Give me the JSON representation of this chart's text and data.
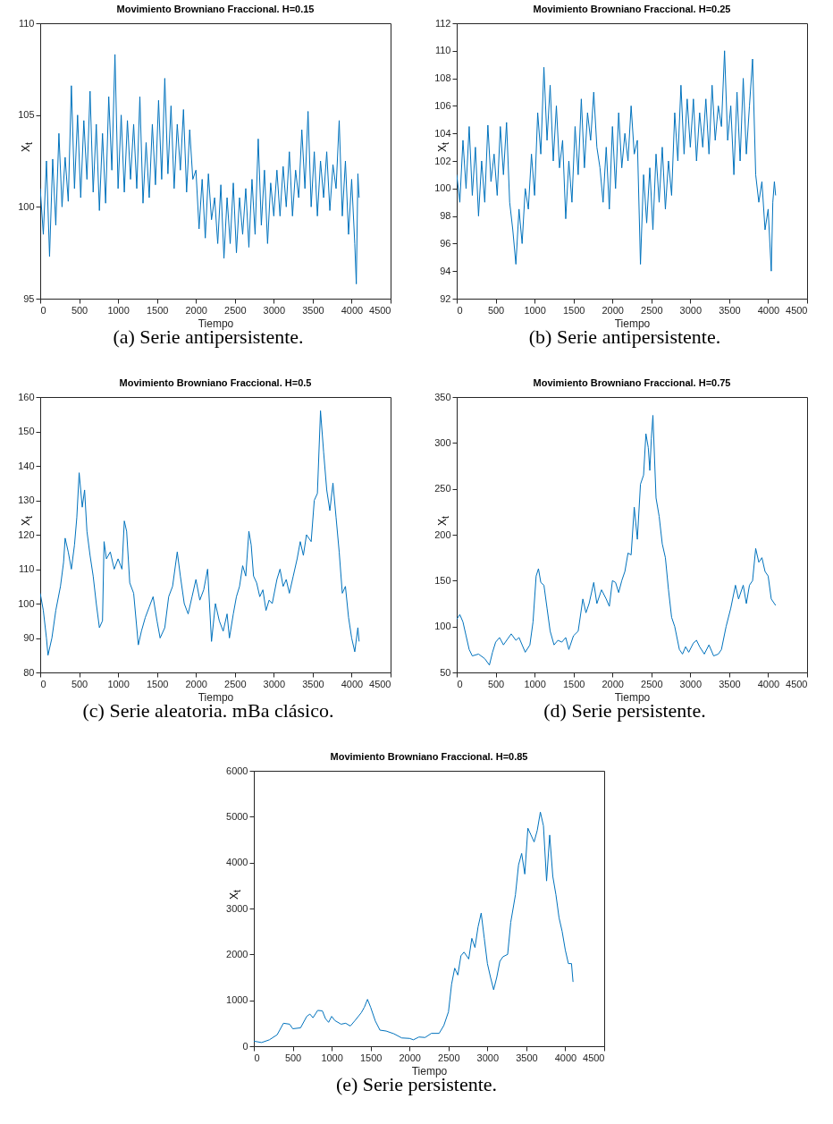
{
  "chart_data": [
    {
      "type": "line",
      "title": "Movimiento Browniano Fraccional. H=0.15",
      "xlabel": "Tiempo",
      "ylabel": "X$_{t}$",
      "annotations": [
        "(a) Serie antipersistente."
      ],
      "xlim": [
        0,
        4500
      ],
      "xticks": [
        0,
        500,
        1000,
        1500,
        2000,
        2500,
        3000,
        3500,
        4000,
        4500
      ],
      "ylim": [
        95,
        110
      ],
      "yticks": [
        95,
        100,
        105,
        110
      ],
      "grid": false,
      "marker": "none",
      "line_style": "solid",
      "series": [
        {
          "color": "#0072bd",
          "x": [
            0,
            40,
            80,
            120,
            160,
            200,
            240,
            280,
            320,
            360,
            400,
            440,
            480,
            520,
            560,
            600,
            640,
            680,
            720,
            760,
            800,
            840,
            880,
            920,
            960,
            1000,
            1040,
            1080,
            1120,
            1160,
            1200,
            1240,
            1280,
            1320,
            1360,
            1400,
            1440,
            1480,
            1520,
            1560,
            1600,
            1640,
            1680,
            1720,
            1760,
            1800,
            1840,
            1880,
            1920,
            1960,
            2000,
            2040,
            2080,
            2120,
            2160,
            2200,
            2240,
            2280,
            2320,
            2360,
            2400,
            2440,
            2480,
            2520,
            2560,
            2600,
            2640,
            2680,
            2720,
            2760,
            2800,
            2840,
            2880,
            2920,
            2960,
            3000,
            3040,
            3080,
            3120,
            3160,
            3200,
            3240,
            3280,
            3320,
            3360,
            3400,
            3440,
            3480,
            3520,
            3560,
            3600,
            3640,
            3680,
            3720,
            3760,
            3800,
            3840,
            3880,
            3920,
            3960,
            4000,
            4040,
            4060,
            4080,
            4096
          ],
          "values": [
            101,
            98.5,
            102.5,
            97.3,
            102.6,
            99,
            104,
            100,
            102.7,
            100.3,
            106.6,
            101,
            105,
            100.5,
            104.7,
            101.5,
            106.3,
            100.8,
            104.5,
            99.8,
            104,
            100.2,
            106,
            102,
            108.3,
            101,
            105,
            100.8,
            104.7,
            101.5,
            104.5,
            101,
            106,
            100.2,
            103.5,
            100.5,
            104.5,
            101.2,
            105.8,
            101.5,
            107,
            101.8,
            105.5,
            101,
            104.5,
            102,
            105.3,
            100.8,
            104.2,
            101.5,
            102,
            98.8,
            101.5,
            98.3,
            101.8,
            99.3,
            100.5,
            98,
            101.2,
            97.2,
            100.5,
            98,
            101.3,
            97.5,
            100.5,
            98.5,
            101,
            97.8,
            101.5,
            98.5,
            103.7,
            99,
            102,
            98,
            101.3,
            99.5,
            102,
            99.5,
            102.2,
            100,
            103,
            99.5,
            102,
            100.5,
            104.2,
            101,
            105.2,
            100,
            103,
            99.5,
            102.5,
            100.5,
            103,
            99.8,
            102.3,
            101,
            104.7,
            99.5,
            102.5,
            98.5,
            101.5,
            98,
            95.8,
            101.8,
            100.5
          ]
        }
      ]
    },
    {
      "type": "line",
      "title": "Movimiento Browniano Fraccional. H=0.25",
      "xlabel": "Tiempo",
      "ylabel": "X$_{t}$",
      "annotations": [
        "(b) Serie antipersistente."
      ],
      "xlim": [
        0,
        4500
      ],
      "xticks": [
        0,
        500,
        1000,
        1500,
        2000,
        2500,
        3000,
        3500,
        4000,
        4500
      ],
      "ylim": [
        92,
        112
      ],
      "yticks": [
        92,
        94,
        96,
        98,
        100,
        102,
        104,
        106,
        108,
        110,
        112
      ],
      "grid": false,
      "marker": "none",
      "line_style": "solid",
      "series": [
        {
          "color": "#0072bd",
          "x": [
            0,
            40,
            80,
            120,
            160,
            200,
            240,
            280,
            320,
            360,
            400,
            440,
            480,
            520,
            560,
            600,
            640,
            680,
            720,
            760,
            800,
            840,
            880,
            920,
            960,
            1000,
            1040,
            1080,
            1120,
            1160,
            1200,
            1240,
            1280,
            1320,
            1360,
            1400,
            1440,
            1480,
            1520,
            1560,
            1600,
            1640,
            1680,
            1720,
            1760,
            1800,
            1840,
            1880,
            1920,
            1960,
            2000,
            2040,
            2080,
            2120,
            2160,
            2200,
            2240,
            2280,
            2320,
            2360,
            2400,
            2440,
            2480,
            2520,
            2560,
            2600,
            2640,
            2680,
            2720,
            2760,
            2800,
            2840,
            2880,
            2920,
            2960,
            3000,
            3040,
            3080,
            3120,
            3160,
            3200,
            3240,
            3280,
            3320,
            3360,
            3400,
            3440,
            3480,
            3520,
            3560,
            3600,
            3640,
            3680,
            3720,
            3760,
            3800,
            3840,
            3880,
            3920,
            3960,
            4000,
            4040,
            4060,
            4080,
            4096
          ],
          "values": [
            101,
            99,
            103.5,
            100,
            104.5,
            99.5,
            103,
            98,
            102,
            99,
            104.6,
            100.5,
            102.5,
            99.5,
            104.5,
            101,
            104.8,
            99,
            97,
            94.5,
            98.5,
            96,
            100,
            98.5,
            102.5,
            99.5,
            105.5,
            102.5,
            108.8,
            103.5,
            107.5,
            102,
            106,
            101.5,
            103.5,
            97.8,
            102,
            99,
            104.5,
            101,
            106.5,
            101.5,
            105.5,
            103.5,
            107,
            103,
            101.5,
            99,
            103,
            98.5,
            104.5,
            100,
            105.5,
            101.5,
            104,
            102,
            106,
            102.5,
            103.5,
            94.5,
            101,
            97.5,
            101.5,
            97,
            102.5,
            99,
            103,
            98.5,
            102,
            99.5,
            105.5,
            102,
            107.5,
            102.5,
            106.5,
            103,
            106.5,
            102,
            105.5,
            103,
            106.5,
            102.5,
            107.5,
            103.5,
            106,
            104.5,
            110,
            103.5,
            106,
            101,
            107,
            102,
            108,
            102.5,
            106,
            109.4,
            101,
            99,
            100.5,
            97,
            98.5,
            94,
            99,
            100.5,
            99.5
          ]
        }
      ]
    },
    {
      "type": "line",
      "title": "Movimiento Browniano Fraccional. H=0.5",
      "xlabel": "Tiempo",
      "ylabel": "X$_{t}$",
      "annotations": [
        "(c) Serie aleatoria. mBa clásico."
      ],
      "xlim": [
        0,
        4500
      ],
      "xticks": [
        0,
        500,
        1000,
        1500,
        2000,
        2500,
        3000,
        3500,
        4000,
        4500
      ],
      "ylim": [
        80,
        160
      ],
      "yticks": [
        80,
        90,
        100,
        110,
        120,
        130,
        140,
        150,
        160
      ],
      "grid": false,
      "marker": "none",
      "line_style": "solid",
      "series": [
        {
          "color": "#0072bd",
          "x": [
            0,
            40,
            80,
            100,
            150,
            200,
            260,
            300,
            320,
            360,
            400,
            440,
            470,
            500,
            540,
            570,
            600,
            640,
            680,
            720,
            760,
            800,
            820,
            850,
            900,
            950,
            1000,
            1050,
            1080,
            1110,
            1150,
            1200,
            1260,
            1300,
            1350,
            1400,
            1450,
            1500,
            1540,
            1600,
            1650,
            1700,
            1760,
            1800,
            1850,
            1900,
            1950,
            2000,
            2050,
            2100,
            2150,
            2200,
            2250,
            2300,
            2350,
            2400,
            2430,
            2480,
            2520,
            2560,
            2600,
            2640,
            2680,
            2710,
            2740,
            2780,
            2820,
            2860,
            2900,
            2940,
            2980,
            3040,
            3080,
            3120,
            3160,
            3200,
            3250,
            3300,
            3340,
            3380,
            3420,
            3480,
            3520,
            3560,
            3600,
            3640,
            3680,
            3720,
            3760,
            3800,
            3840,
            3880,
            3920,
            3960,
            4000,
            4040,
            4080,
            4096
          ],
          "values": [
            103,
            98,
            90,
            85,
            90,
            98,
            105,
            112,
            119,
            115,
            110,
            117,
            125,
            138,
            128,
            133,
            121,
            114,
            108,
            100,
            93,
            95,
            118,
            113,
            115,
            110,
            113,
            110,
            124,
            121,
            106,
            103,
            88,
            92,
            96,
            99,
            102,
            95,
            90,
            93,
            102,
            105,
            115,
            108,
            100,
            97,
            102,
            107,
            101,
            104,
            110,
            89,
            100,
            95,
            92,
            97,
            90,
            97,
            102,
            105,
            111,
            108,
            121,
            117,
            108,
            106,
            102,
            104,
            98,
            101,
            100,
            107,
            110,
            105,
            107,
            103,
            108,
            113,
            118,
            114,
            120,
            118,
            130,
            132,
            156,
            144,
            133,
            127,
            135,
            125,
            115,
            103,
            105,
            96,
            90,
            86,
            93,
            89
          ]
        }
      ]
    },
    {
      "type": "line",
      "title": "Movimiento Browniano Fraccional. H=0.75",
      "xlabel": "Tiempo",
      "ylabel": "X$_{t}$",
      "annotations": [
        "(d) Serie persistente."
      ],
      "xlim": [
        0,
        4500
      ],
      "xticks": [
        0,
        500,
        1000,
        1500,
        2000,
        2500,
        3000,
        3500,
        4000,
        4500
      ],
      "ylim": [
        50,
        350
      ],
      "yticks": [
        50,
        100,
        150,
        200,
        250,
        300,
        350
      ],
      "grid": false,
      "marker": "none",
      "line_style": "solid",
      "series": [
        {
          "color": "#0072bd",
          "x": [
            0,
            40,
            80,
            120,
            160,
            200,
            280,
            360,
            420,
            460,
            500,
            550,
            600,
            700,
            760,
            800,
            880,
            940,
            980,
            1020,
            1050,
            1080,
            1120,
            1160,
            1200,
            1250,
            1300,
            1350,
            1400,
            1440,
            1500,
            1560,
            1620,
            1660,
            1700,
            1760,
            1800,
            1860,
            1920,
            1960,
            2000,
            2040,
            2080,
            2120,
            2160,
            2200,
            2240,
            2280,
            2320,
            2360,
            2400,
            2430,
            2460,
            2480,
            2500,
            2520,
            2560,
            2600,
            2640,
            2680,
            2720,
            2760,
            2800,
            2860,
            2900,
            2940,
            2980,
            3040,
            3080,
            3120,
            3180,
            3240,
            3300,
            3360,
            3400,
            3460,
            3520,
            3580,
            3620,
            3680,
            3720,
            3760,
            3800,
            3840,
            3880,
            3920,
            3960,
            4000,
            4040,
            4080,
            4096
          ],
          "values": [
            108,
            113,
            105,
            90,
            75,
            68,
            70,
            65,
            58,
            72,
            83,
            88,
            80,
            92,
            85,
            88,
            72,
            80,
            105,
            155,
            163,
            148,
            145,
            120,
            95,
            80,
            85,
            83,
            88,
            75,
            90,
            95,
            130,
            115,
            125,
            148,
            125,
            140,
            130,
            122,
            150,
            148,
            137,
            150,
            160,
            180,
            178,
            230,
            195,
            255,
            265,
            310,
            295,
            270,
            305,
            330,
            240,
            220,
            190,
            175,
            140,
            110,
            100,
            75,
            70,
            78,
            72,
            82,
            85,
            78,
            70,
            80,
            68,
            70,
            75,
            100,
            120,
            145,
            130,
            145,
            125,
            145,
            150,
            185,
            170,
            175,
            160,
            155,
            130,
            125,
            123
          ]
        }
      ]
    },
    {
      "type": "line",
      "title": "Movimiento Browniano Fraccional. H=0.85",
      "xlabel": "Tiempo",
      "ylabel": "X$_{t}$",
      "annotations": [
        "(e) Serie persistente."
      ],
      "xlim": [
        0,
        4500
      ],
      "xticks": [
        0,
        500,
        1000,
        1500,
        2000,
        2500,
        3000,
        3500,
        4000,
        4500
      ],
      "ylim": [
        0,
        6000
      ],
      "yticks": [
        0,
        1000,
        2000,
        3000,
        4000,
        5000,
        6000
      ],
      "grid": false,
      "marker": "none",
      "line_style": "solid",
      "series": [
        {
          "color": "#0072bd",
          "x": [
            0,
            100,
            200,
            300,
            380,
            460,
            500,
            600,
            680,
            720,
            760,
            820,
            880,
            920,
            960,
            1000,
            1040,
            1120,
            1180,
            1240,
            1300,
            1380,
            1420,
            1460,
            1500,
            1560,
            1620,
            1700,
            1800,
            1900,
            2000,
            2050,
            2120,
            2200,
            2280,
            2380,
            2440,
            2500,
            2540,
            2580,
            2620,
            2660,
            2700,
            2760,
            2800,
            2840,
            2880,
            2920,
            2960,
            3000,
            3040,
            3080,
            3120,
            3160,
            3200,
            3260,
            3300,
            3360,
            3400,
            3440,
            3480,
            3520,
            3560,
            3600,
            3640,
            3680,
            3720,
            3760,
            3800,
            3840,
            3880,
            3920,
            3960,
            4000,
            4040,
            4080,
            4100
          ],
          "values": [
            110,
            80,
            140,
            250,
            500,
            480,
            380,
            400,
            650,
            700,
            620,
            780,
            770,
            600,
            520,
            650,
            560,
            480,
            500,
            440,
            560,
            730,
            850,
            1020,
            850,
            550,
            350,
            330,
            270,
            180,
            170,
            140,
            200,
            190,
            280,
            280,
            450,
            750,
            1350,
            1700,
            1550,
            1970,
            2050,
            1900,
            2350,
            2150,
            2600,
            2900,
            2350,
            1800,
            1500,
            1230,
            1500,
            1850,
            1950,
            2000,
            2700,
            3300,
            3950,
            4200,
            3750,
            4750,
            4600,
            4450,
            4700,
            5100,
            4800,
            3600,
            4600,
            3700,
            3300,
            2800,
            2500,
            2100,
            1800,
            1800,
            1400
          ]
        }
      ]
    }
  ]
}
